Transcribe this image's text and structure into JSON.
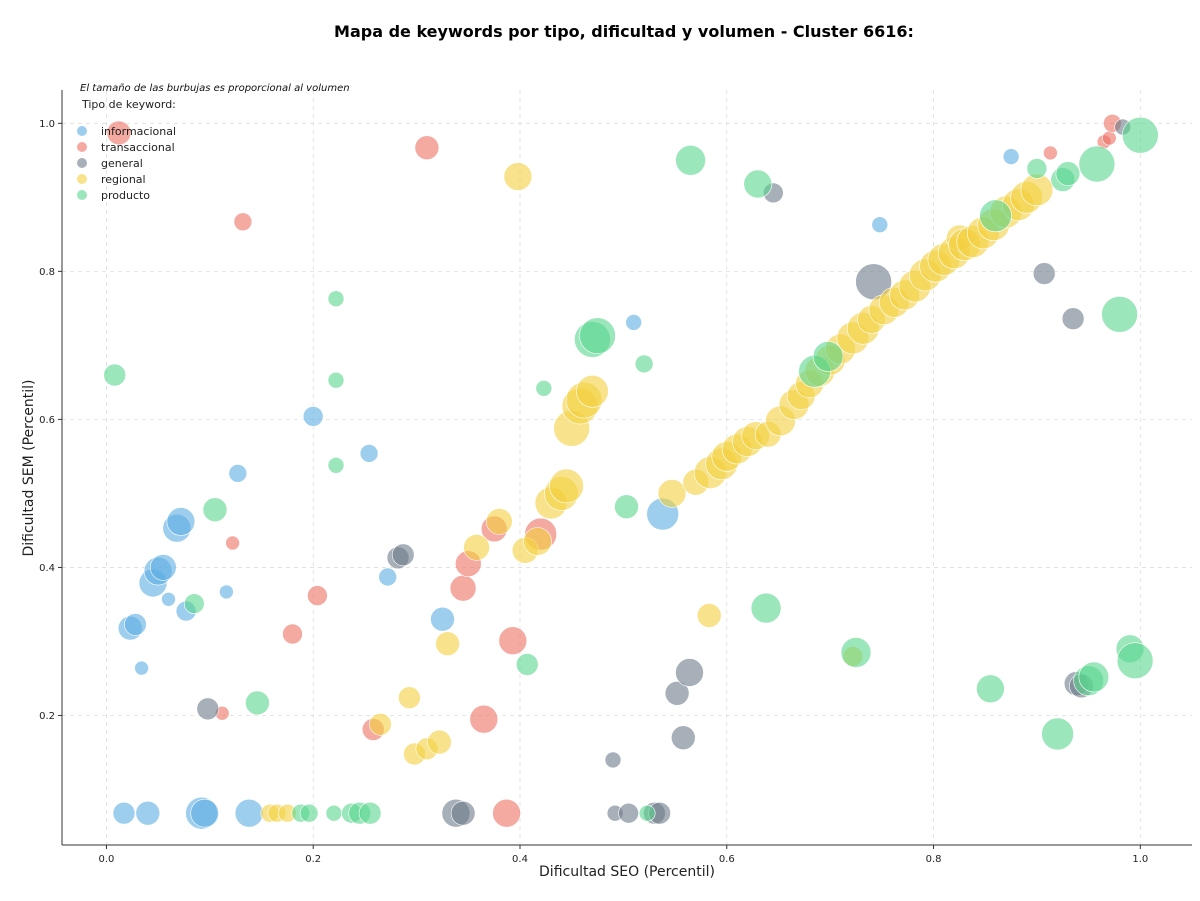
{
  "chart_data": {
    "type": "scatter",
    "title": "Mapa de keywords por tipo, dificultad y volumen - Cluster 6616:",
    "xlabel": "Dificultad SEO (Percentil)",
    "ylabel": "Dificultad SEM (Percentil)",
    "xlim": [
      -0.043,
      1.05
    ],
    "ylim": [
      0.025,
      1.045
    ],
    "xticks": [
      "0.0",
      "0.2",
      "0.4",
      "0.6",
      "0.8",
      "1.0"
    ],
    "yticks": [
      "0.2",
      "0.4",
      "0.6",
      "0.8",
      "1.0"
    ],
    "grid": true,
    "note": "El tamaño de las burbujas es proporcional al volumen",
    "legend": {
      "title": "Tipo de keyword:",
      "placement": "top-left"
    },
    "series": [
      {
        "name": "informacional",
        "color": "#5dade2",
        "points": [
          [
            0.017,
            0.068,
            11
          ],
          [
            0.04,
            0.068,
            12
          ],
          [
            0.092,
            0.068,
            16
          ],
          [
            0.095,
            0.068,
            14
          ],
          [
            0.138,
            0.068,
            14
          ],
          [
            0.023,
            0.318,
            12
          ],
          [
            0.028,
            0.323,
            11
          ],
          [
            0.034,
            0.264,
            7
          ],
          [
            0.045,
            0.379,
            14
          ],
          [
            0.05,
            0.395,
            14
          ],
          [
            0.055,
            0.4,
            13
          ],
          [
            0.06,
            0.357,
            7
          ],
          [
            0.068,
            0.453,
            14
          ],
          [
            0.072,
            0.462,
            14
          ],
          [
            0.077,
            0.341,
            10
          ],
          [
            0.116,
            0.367,
            7
          ],
          [
            0.127,
            0.527,
            9
          ],
          [
            0.2,
            0.604,
            10
          ],
          [
            0.254,
            0.554,
            9
          ],
          [
            0.272,
            0.387,
            9
          ],
          [
            0.325,
            0.33,
            12
          ],
          [
            0.51,
            0.731,
            8
          ],
          [
            0.538,
            0.472,
            16
          ],
          [
            0.748,
            0.863,
            8
          ],
          [
            0.875,
            0.955,
            8
          ]
        ]
      },
      {
        "name": "transaccional",
        "color": "#ec7063",
        "points": [
          [
            0.012,
            0.987,
            12
          ],
          [
            0.132,
            0.867,
            9
          ],
          [
            0.31,
            0.967,
            12
          ],
          [
            0.122,
            0.433,
            7
          ],
          [
            0.112,
            0.203,
            7
          ],
          [
            0.18,
            0.31,
            10
          ],
          [
            0.204,
            0.362,
            10
          ],
          [
            0.258,
            0.181,
            11
          ],
          [
            0.345,
            0.372,
            13
          ],
          [
            0.35,
            0.405,
            13
          ],
          [
            0.375,
            0.452,
            13
          ],
          [
            0.365,
            0.195,
            14
          ],
          [
            0.387,
            0.068,
            14
          ],
          [
            0.393,
            0.301,
            14
          ],
          [
            0.42,
            0.445,
            16
          ],
          [
            0.913,
            0.96,
            7
          ],
          [
            0.965,
            0.975,
            7
          ],
          [
            0.97,
            0.98,
            7
          ],
          [
            0.973,
            1.0,
            9
          ]
        ]
      },
      {
        "name": "general",
        "color": "#6c7a89",
        "points": [
          [
            0.098,
            0.209,
            11
          ],
          [
            0.282,
            0.413,
            11
          ],
          [
            0.287,
            0.417,
            11
          ],
          [
            0.338,
            0.068,
            14
          ],
          [
            0.345,
            0.068,
            12
          ],
          [
            0.49,
            0.14,
            8
          ],
          [
            0.492,
            0.068,
            8
          ],
          [
            0.505,
            0.068,
            10
          ],
          [
            0.53,
            0.068,
            11
          ],
          [
            0.535,
            0.068,
            11
          ],
          [
            0.552,
            0.23,
            12
          ],
          [
            0.558,
            0.17,
            12
          ],
          [
            0.564,
            0.258,
            14
          ],
          [
            0.645,
            0.906,
            10
          ],
          [
            0.742,
            0.786,
            18
          ],
          [
            0.907,
            0.797,
            11
          ],
          [
            0.935,
            0.736,
            11
          ],
          [
            0.938,
            0.243,
            12
          ],
          [
            0.943,
            0.24,
            12
          ],
          [
            0.983,
            0.995,
            8
          ]
        ]
      },
      {
        "name": "regional",
        "color": "#f4d03f",
        "points": [
          [
            0.158,
            0.068,
            9
          ],
          [
            0.165,
            0.068,
            9
          ],
          [
            0.175,
            0.068,
            9
          ],
          [
            0.265,
            0.188,
            11
          ],
          [
            0.293,
            0.224,
            11
          ],
          [
            0.298,
            0.148,
            11
          ],
          [
            0.31,
            0.155,
            11
          ],
          [
            0.322,
            0.164,
            12
          ],
          [
            0.33,
            0.297,
            12
          ],
          [
            0.358,
            0.427,
            13
          ],
          [
            0.38,
            0.462,
            13
          ],
          [
            0.398,
            0.928,
            14
          ],
          [
            0.405,
            0.423,
            13
          ],
          [
            0.417,
            0.435,
            14
          ],
          [
            0.43,
            0.487,
            16
          ],
          [
            0.44,
            0.5,
            17
          ],
          [
            0.445,
            0.51,
            17
          ],
          [
            0.45,
            0.588,
            18
          ],
          [
            0.458,
            0.618,
            18
          ],
          [
            0.462,
            0.626,
            18
          ],
          [
            0.47,
            0.638,
            16
          ],
          [
            0.547,
            0.5,
            14
          ],
          [
            0.57,
            0.515,
            13
          ],
          [
            0.583,
            0.335,
            12
          ],
          [
            0.584,
            0.528,
            16
          ],
          [
            0.595,
            0.54,
            16
          ],
          [
            0.6,
            0.55,
            15
          ],
          [
            0.61,
            0.56,
            15
          ],
          [
            0.62,
            0.57,
            15
          ],
          [
            0.628,
            0.578,
            14
          ],
          [
            0.64,
            0.58,
            13
          ],
          [
            0.652,
            0.598,
            15
          ],
          [
            0.665,
            0.62,
            15
          ],
          [
            0.672,
            0.632,
            14
          ],
          [
            0.68,
            0.648,
            14
          ],
          [
            0.69,
            0.665,
            15
          ],
          [
            0.7,
            0.68,
            15
          ],
          [
            0.71,
            0.695,
            15
          ],
          [
            0.722,
            0.71,
            16
          ],
          [
            0.732,
            0.723,
            16
          ],
          [
            0.74,
            0.735,
            14
          ],
          [
            0.722,
            0.28,
            10
          ],
          [
            0.752,
            0.748,
            15
          ],
          [
            0.762,
            0.758,
            15
          ],
          [
            0.772,
            0.768,
            15
          ],
          [
            0.782,
            0.78,
            16
          ],
          [
            0.792,
            0.795,
            16
          ],
          [
            0.802,
            0.807,
            16
          ],
          [
            0.81,
            0.816,
            16
          ],
          [
            0.82,
            0.825,
            16
          ],
          [
            0.825,
            0.845,
            13
          ],
          [
            0.83,
            0.836,
            16
          ],
          [
            0.838,
            0.84,
            16
          ],
          [
            0.848,
            0.852,
            16
          ],
          [
            0.858,
            0.863,
            16
          ],
          [
            0.87,
            0.88,
            16
          ],
          [
            0.882,
            0.89,
            16
          ],
          [
            0.89,
            0.9,
            16
          ],
          [
            0.9,
            0.91,
            16
          ]
        ]
      },
      {
        "name": "producto",
        "color": "#58d68d",
        "points": [
          [
            0.008,
            0.66,
            11
          ],
          [
            0.085,
            0.351,
            10
          ],
          [
            0.105,
            0.478,
            12
          ],
          [
            0.146,
            0.217,
            12
          ],
          [
            0.188,
            0.068,
            9
          ],
          [
            0.196,
            0.068,
            9
          ],
          [
            0.22,
            0.068,
            8
          ],
          [
            0.222,
            0.538,
            8
          ],
          [
            0.222,
            0.653,
            8
          ],
          [
            0.222,
            0.763,
            8
          ],
          [
            0.237,
            0.068,
            10
          ],
          [
            0.245,
            0.068,
            11
          ],
          [
            0.255,
            0.068,
            11
          ],
          [
            0.407,
            0.269,
            11
          ],
          [
            0.423,
            0.642,
            8
          ],
          [
            0.47,
            0.708,
            18
          ],
          [
            0.475,
            0.713,
            18
          ],
          [
            0.503,
            0.482,
            12
          ],
          [
            0.52,
            0.675,
            9
          ],
          [
            0.523,
            0.068,
            8
          ],
          [
            0.565,
            0.95,
            15
          ],
          [
            0.63,
            0.918,
            14
          ],
          [
            0.638,
            0.345,
            15
          ],
          [
            0.685,
            0.665,
            16
          ],
          [
            0.698,
            0.685,
            15
          ],
          [
            0.725,
            0.285,
            15
          ],
          [
            0.855,
            0.236,
            14
          ],
          [
            0.86,
            0.875,
            16
          ],
          [
            0.92,
            0.175,
            16
          ],
          [
            0.9,
            0.939,
            10
          ],
          [
            0.925,
            0.924,
            12
          ],
          [
            0.93,
            0.932,
            12
          ],
          [
            0.95,
            0.247,
            15
          ],
          [
            0.955,
            0.252,
            15
          ],
          [
            0.958,
            0.945,
            18
          ],
          [
            0.98,
            0.742,
            18
          ],
          [
            0.99,
            0.29,
            14
          ],
          [
            0.995,
            0.274,
            18
          ],
          [
            1.0,
            0.984,
            18
          ]
        ]
      }
    ]
  }
}
